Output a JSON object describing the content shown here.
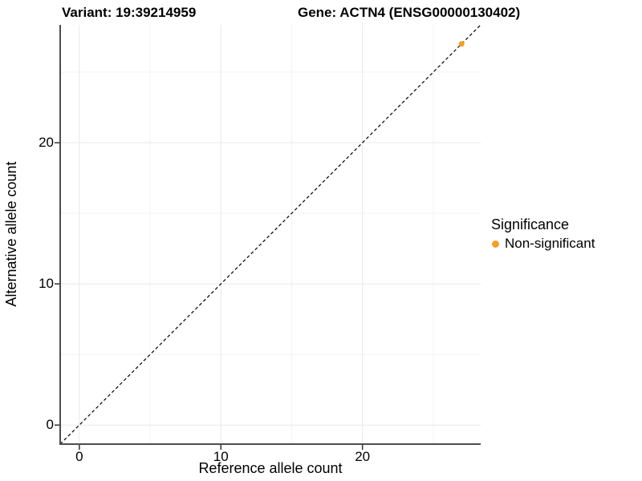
{
  "header": {
    "title_left": "Variant: 19:39214959",
    "title_right": "Gene: ACTN4 (ENSG00000130402)"
  },
  "axes": {
    "x_title": "Reference allele count",
    "y_title": "Alternative allele count"
  },
  "legend": {
    "title": "Significance",
    "items": [
      {
        "label": "Non-significant",
        "color": "#F7A024"
      }
    ]
  },
  "chart_data": {
    "type": "scatter",
    "title": "Variant: 19:39214959 — Gene: ACTN4 (ENSG00000130402)",
    "xlabel": "Reference allele count",
    "ylabel": "Alternative allele count",
    "xlim": [
      -1.35,
      28.35
    ],
    "ylim": [
      -1.35,
      28.35
    ],
    "x_ticks": [
      0,
      10,
      20
    ],
    "y_ticks": [
      0,
      10,
      20
    ],
    "x_minor_gridlines": [
      5,
      15,
      25
    ],
    "y_minor_gridlines": [
      5,
      15,
      25
    ],
    "grid": true,
    "legend_position": "right",
    "identity_line": {
      "style": "dashed",
      "slope": 1,
      "intercept": 0,
      "color": "#000000"
    },
    "series": [
      {
        "name": "Non-significant",
        "color": "#F7A024",
        "points": [
          {
            "x": 27,
            "y": 27
          }
        ]
      }
    ]
  },
  "style": {
    "axis_line_color": "#4c4c4c",
    "tick_mark_color": "#333333",
    "major_grid_color": "#e8e8e8",
    "minor_grid_color": "#f3f3f3",
    "point_color": "#F7A024",
    "background": "#ffffff"
  }
}
